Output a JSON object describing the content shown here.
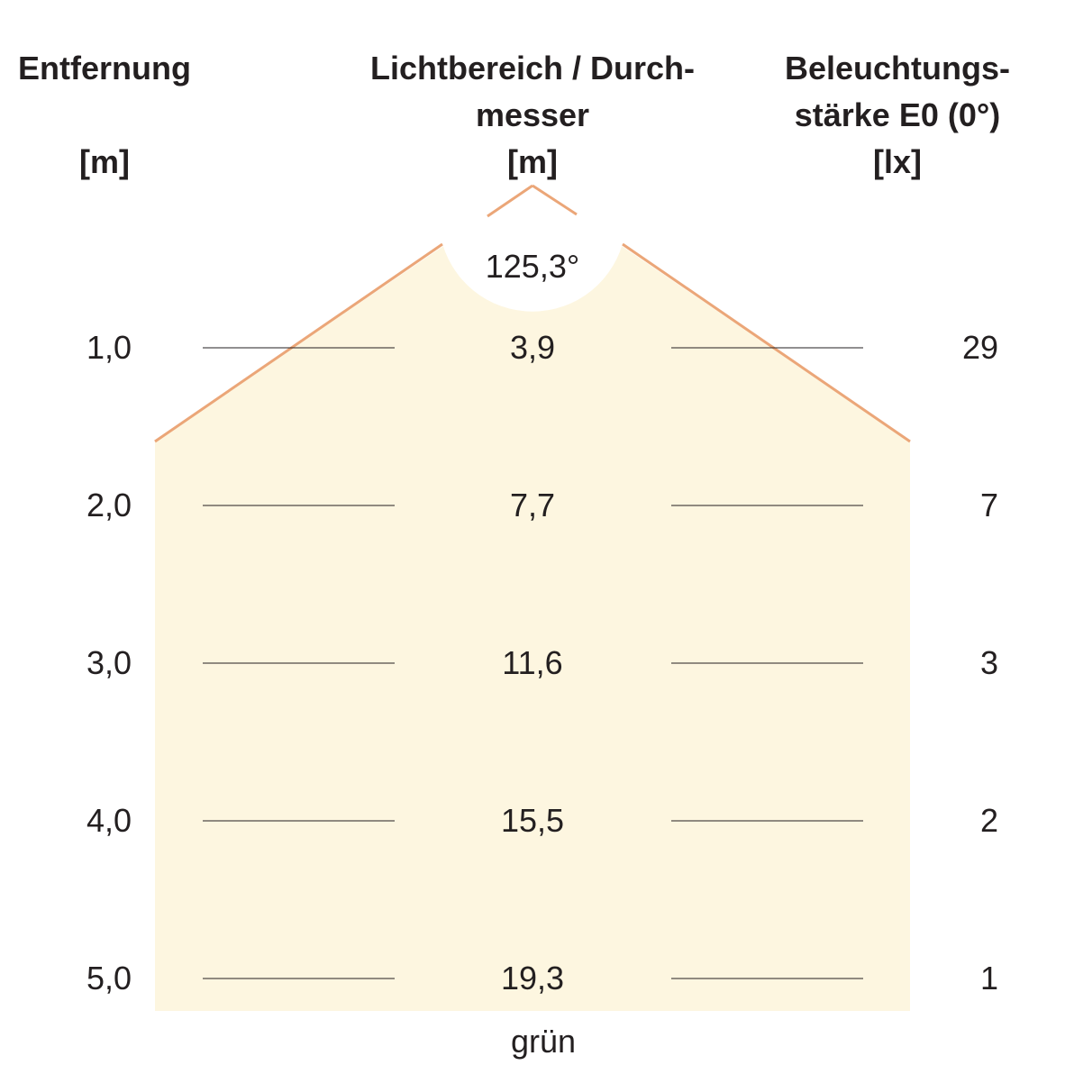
{
  "headers": {
    "distance": {
      "line1": "Entfernung",
      "unit": "[m]"
    },
    "diameter": {
      "line1": "Lichtbereich / Durch-",
      "line2": "messer",
      "unit": "[m]"
    },
    "illuminance": {
      "line1": "Beleuchtungs-",
      "line2": "stärke E0 (0°)",
      "unit": "[lx]"
    }
  },
  "beam_angle": "125,3°",
  "rows": [
    {
      "distance": "1,0",
      "diameter": "3,9",
      "lux": "29"
    },
    {
      "distance": "2,0",
      "diameter": "7,7",
      "lux": "7"
    },
    {
      "distance": "3,0",
      "diameter": "11,6",
      "lux": "3"
    },
    {
      "distance": "4,0",
      "diameter": "15,5",
      "lux": "2"
    },
    {
      "distance": "5,0",
      "diameter": "19,3",
      "lux": "1"
    }
  ],
  "color_label": "grün",
  "colors": {
    "light_fill": "#fdf6e0",
    "beam_edge": "#eba678",
    "text": "#231f20",
    "rule": "#231f20"
  }
}
